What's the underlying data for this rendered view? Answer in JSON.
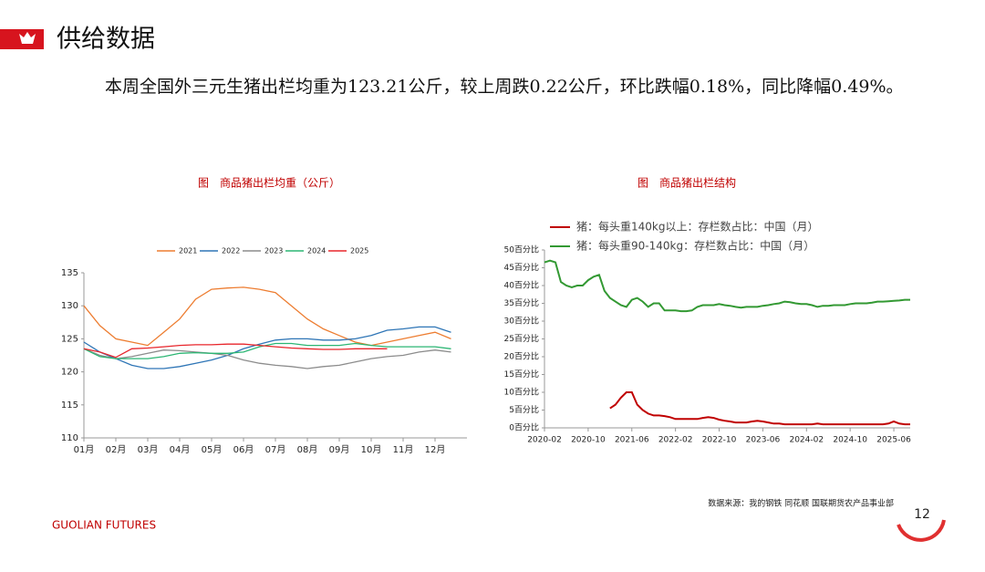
{
  "header": {
    "title": "供给数据",
    "text": "本周全国外三元生猪出栏均重为123.21公斤，较上周跌0.22公斤，环比跌幅0.18%，同比降幅0.49%。"
  },
  "chart_data": [
    {
      "type": "line",
      "title": "图　商品猪出栏均重（公斤）",
      "x": [
        1,
        1.5,
        2,
        2.5,
        3,
        3.5,
        4,
        4.5,
        5,
        5.5,
        6,
        6.5,
        7,
        7.5,
        8,
        8.5,
        9,
        9.5,
        10,
        10.5,
        11,
        11.5,
        12,
        12.5
      ],
      "xlim": [
        1,
        13
      ],
      "xticks": [
        {
          "value": 1,
          "label": "01月"
        },
        {
          "value": 2,
          "label": "02月"
        },
        {
          "value": 3,
          "label": "03月"
        },
        {
          "value": 4,
          "label": "04月"
        },
        {
          "value": 5,
          "label": "05月"
        },
        {
          "value": 6,
          "label": "06月"
        },
        {
          "value": 7,
          "label": "07月"
        },
        {
          "value": 8,
          "label": "08月"
        },
        {
          "value": 9,
          "label": "09月"
        },
        {
          "value": 10,
          "label": "10月"
        },
        {
          "value": 11,
          "label": "11月"
        },
        {
          "value": 12,
          "label": "12月"
        }
      ],
      "ylim": [
        110,
        135
      ],
      "yticks": [
        110,
        115,
        120,
        125,
        130,
        135
      ],
      "series": [
        {
          "name": "2021",
          "color": "#ed7d31",
          "values": [
            130,
            127,
            125,
            124.5,
            124,
            126,
            128,
            131,
            132.5,
            132.7,
            132.8,
            132.5,
            132,
            130,
            128,
            126.5,
            125.5,
            124.5,
            124,
            124.5,
            125,
            125.5,
            126,
            125
          ]
        },
        {
          "name": "2022",
          "color": "#2e75b6",
          "values": [
            124.5,
            123,
            122,
            121,
            120.5,
            120.5,
            120.8,
            121.3,
            121.8,
            122.5,
            123.5,
            124.2,
            124.8,
            125,
            125,
            124.8,
            124.8,
            125,
            125.5,
            126.3,
            126.5,
            126.8,
            126.8,
            126
          ]
        },
        {
          "name": "2023",
          "color": "#8c8c8c",
          "values": [
            123.5,
            122.5,
            122,
            122.3,
            122.8,
            123.3,
            123.2,
            123,
            122.8,
            122.5,
            121.8,
            121.3,
            121,
            120.8,
            120.5,
            120.8,
            121,
            121.5,
            122,
            122.3,
            122.5,
            123,
            123.3,
            123
          ]
        },
        {
          "name": "2024",
          "color": "#2bb673",
          "values": [
            123.5,
            122.3,
            122,
            122,
            122,
            122.3,
            122.8,
            122.9,
            122.8,
            122.8,
            123,
            123.8,
            124.3,
            124.3,
            124,
            124,
            124,
            124.3,
            124,
            123.8,
            123.8,
            123.8,
            123.8,
            123.5
          ]
        },
        {
          "name": "2025",
          "color": "#e8262c",
          "values": [
            123.5,
            123,
            122.2,
            123.5,
            123.6,
            123.8,
            124,
            124.1,
            124.1,
            124.2,
            124.2,
            124,
            123.8,
            123.6,
            123.5,
            123.4,
            123.4,
            123.5,
            123.5,
            123.5,
            null,
            null,
            null,
            null
          ]
        }
      ]
    },
    {
      "type": "line",
      "title": "图　商品猪出栏结构",
      "x": [
        "2020-02",
        "2020-03",
        "2020-04",
        "2020-05",
        "2020-06",
        "2020-07",
        "2020-08",
        "2020-09",
        "2020-10",
        "2020-11",
        "2020-12",
        "2021-01",
        "2021-02",
        "2021-03",
        "2021-04",
        "2021-05",
        "2021-06",
        "2021-07",
        "2021-08",
        "2021-09",
        "2021-10",
        "2021-11",
        "2021-12",
        "2022-01",
        "2022-02",
        "2022-03",
        "2022-04",
        "2022-05",
        "2022-06",
        "2022-07",
        "2022-08",
        "2022-09",
        "2022-10",
        "2022-11",
        "2022-12",
        "2023-01",
        "2023-02",
        "2023-03",
        "2023-04",
        "2023-05",
        "2023-06",
        "2023-07",
        "2023-08",
        "2023-09",
        "2023-10",
        "2023-11",
        "2023-12",
        "2024-01",
        "2024-02",
        "2024-03",
        "2024-04",
        "2024-05",
        "2024-06",
        "2024-07",
        "2024-08",
        "2024-09",
        "2024-10",
        "2024-11",
        "2024-12",
        "2025-01",
        "2025-02",
        "2025-03",
        "2025-04",
        "2025-05",
        "2025-06",
        "2025-07",
        "2025-08",
        "2025-09"
      ],
      "xticks": [
        "2020-02",
        "2020-10",
        "2021-06",
        "2022-02",
        "2022-10",
        "2023-06",
        "2024-02",
        "2024-10",
        "2025-06"
      ],
      "ylim": [
        0,
        50
      ],
      "yticks": [
        {
          "value": 0,
          "label": "0百分比"
        },
        {
          "value": 5,
          "label": "5百分比"
        },
        {
          "value": 10,
          "label": "10百分比"
        },
        {
          "value": 15,
          "label": "15百分比"
        },
        {
          "value": 20,
          "label": "20百分比"
        },
        {
          "value": 25,
          "label": "25百分比"
        },
        {
          "value": 30,
          "label": "30百分比"
        },
        {
          "value": 35,
          "label": "35百分比"
        },
        {
          "value": 40,
          "label": "40百分比"
        },
        {
          "value": 45,
          "label": "45百分比"
        },
        {
          "value": 50,
          "label": "50百分比"
        }
      ],
      "series": [
        {
          "name": "猪：每头重140kg以上：存栏数占比：中国（月）",
          "color": "#c00000",
          "values": [
            null,
            null,
            null,
            null,
            null,
            null,
            null,
            null,
            null,
            null,
            null,
            null,
            5.5,
            6.5,
            8.5,
            10,
            10,
            6.5,
            5,
            4,
            3.5,
            3.5,
            3.3,
            3,
            2.5,
            2.5,
            2.5,
            2.5,
            2.5,
            2.8,
            3,
            2.8,
            2.3,
            2,
            1.8,
            1.5,
            1.5,
            1.5,
            1.8,
            2,
            1.8,
            1.5,
            1.2,
            1.2,
            1,
            1,
            1,
            1,
            1,
            1,
            1.2,
            1,
            1,
            1,
            1,
            1,
            1,
            1,
            1,
            1,
            1,
            1,
            1,
            1.2,
            1.8,
            1.2,
            1,
            1
          ]
        },
        {
          "name": "猪：每头重90-140kg：存栏数占比：中国（月）",
          "color": "#339933",
          "values": [
            46.5,
            47,
            46.5,
            41,
            40,
            39.5,
            40,
            40,
            41.5,
            42.5,
            43,
            38.5,
            36.5,
            35.5,
            34.5,
            34,
            36,
            36.5,
            35.5,
            34,
            35,
            35,
            33,
            33,
            33,
            32.8,
            32.8,
            33,
            34,
            34.5,
            34.5,
            34.5,
            34.8,
            34.5,
            34.3,
            34,
            33.8,
            34,
            34,
            34,
            34.3,
            34.5,
            34.8,
            35,
            35.5,
            35.3,
            35,
            34.8,
            34.8,
            34.5,
            34,
            34.3,
            34.3,
            34.5,
            34.5,
            34.5,
            34.8,
            35,
            35,
            35,
            35.2,
            35.5,
            35.5,
            35.6,
            35.7,
            35.8,
            36,
            36
          ]
        }
      ]
    }
  ],
  "footer": {
    "source": "数据来源：我的钢铁 同花顺 国联期货农产品事业部",
    "brand": "GUOLIAN FUTURES",
    "page": "12"
  }
}
